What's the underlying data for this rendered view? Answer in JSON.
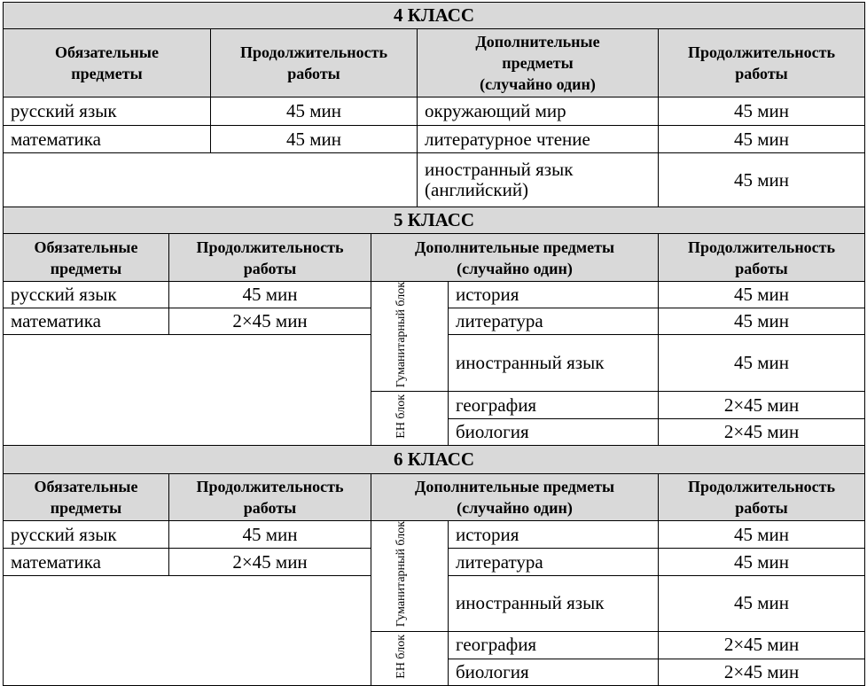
{
  "sections": [
    {
      "title": "4 КЛАСС",
      "headers": [
        "Обязательные\nпредметы",
        "Продолжительность\nработы",
        "Дополнительные\nпредметы\n(случайно один)",
        "Продолжительность\nработы"
      ],
      "required": [
        {
          "subject": "русский язык",
          "duration": "45 мин"
        },
        {
          "subject": "математика",
          "duration": "45 мин"
        }
      ],
      "optional": [
        {
          "items": [
            {
              "subject": "окружающий мир",
              "duration": "45 мин"
            },
            {
              "subject": "литературное чтение",
              "duration": "45 мин"
            },
            {
              "subject": "иностранный язык (английский)",
              "duration": "45 мин"
            }
          ]
        }
      ]
    },
    {
      "title": "5 КЛАСС",
      "headers": [
        "Обязательные\nпредметы",
        "Продолжительность\nработы",
        "Дополнительные предметы\n(случайно один)",
        "Продолжительность\nработы"
      ],
      "required": [
        {
          "subject": "русский язык",
          "duration": "45 мин"
        },
        {
          "subject": "математика",
          "duration": "2×45 мин"
        }
      ],
      "optional": [
        {
          "label": "Гуманитарный блок",
          "items": [
            {
              "subject": "история",
              "duration": "45 мин"
            },
            {
              "subject": "литература",
              "duration": "45 мин"
            },
            {
              "subject": "иностранный язык",
              "duration": "45 мин"
            }
          ]
        },
        {
          "label": "ЕН блок",
          "items": [
            {
              "subject": "география",
              "duration": "2×45 мин"
            },
            {
              "subject": "биология",
              "duration": "2×45 мин"
            }
          ]
        }
      ]
    },
    {
      "title": "6 КЛАСС",
      "headers": [
        "Обязательные\nпредметы",
        "Продолжительность\nработы",
        "Дополнительные предметы\n(случайно один)",
        "Продолжительность\nработы"
      ],
      "required": [
        {
          "subject": "русский язык",
          "duration": "45 мин"
        },
        {
          "subject": "математика",
          "duration": "2×45 мин"
        }
      ],
      "optional": [
        {
          "label": "Гуманитарный блок",
          "items": [
            {
              "subject": "история",
              "duration": "45 мин"
            },
            {
              "subject": "литература",
              "duration": "45 мин"
            },
            {
              "subject": "иностранный язык",
              "duration": "45 мин"
            }
          ]
        },
        {
          "label": "ЕН блок",
          "items": [
            {
              "subject": "география",
              "duration": "2×45 мин"
            },
            {
              "subject": "биология",
              "duration": "2×45 мин"
            }
          ]
        }
      ]
    }
  ]
}
